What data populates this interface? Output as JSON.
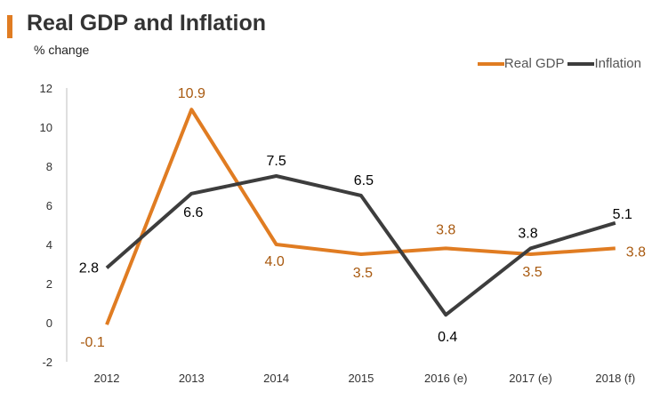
{
  "title": "Real GDP and Inflation",
  "subtitle": "% change",
  "colors": {
    "accent": "#e07c22",
    "gdp": "#e07c22",
    "inflation": "#3d3d3d",
    "gdp_label": "#a8590f",
    "inflation_label": "#000000",
    "axis": "#bfbfbf"
  },
  "chart_data": {
    "type": "line",
    "title": "Real GDP and Inflation",
    "ylabel": "% change",
    "xlabel": "",
    "categories": [
      "2012",
      "2013",
      "2014",
      "2015",
      "2016 (e)",
      "2017 (e)",
      "2018 (f)"
    ],
    "ylim": [
      -2,
      12
    ],
    "yticks": [
      "12",
      "10",
      "8",
      "6",
      "4",
      "2",
      "0",
      "-2"
    ],
    "ytick_values": [
      12,
      10,
      8,
      6,
      4,
      2,
      0,
      -2
    ],
    "grid": false,
    "legend_position": "top-right",
    "series": [
      {
        "name": "Real GDP",
        "key": "gdp",
        "values": [
          -0.1,
          10.9,
          4.0,
          3.5,
          3.8,
          3.5,
          3.8
        ],
        "labels": [
          "-0.1",
          "10.9",
          "4.0",
          "3.5",
          "3.8",
          "3.5",
          "3.8"
        ]
      },
      {
        "name": "Inflation",
        "key": "inflation",
        "values": [
          2.8,
          6.6,
          7.5,
          6.5,
          0.4,
          3.8,
          5.1
        ],
        "labels": [
          "2.8",
          "6.6",
          "7.5",
          "6.5",
          "0.4",
          "3.8",
          "5.1"
        ]
      }
    ]
  }
}
